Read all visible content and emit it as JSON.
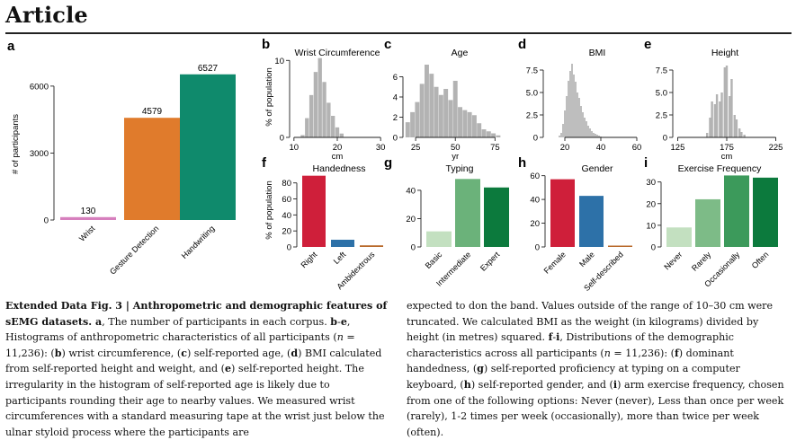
{
  "header": {
    "section": "Article"
  },
  "chart_data": [
    {
      "panel": "a",
      "type": "bar",
      "categories": [
        "Wrist",
        "Gesture Detection",
        "Handwriting"
      ],
      "values": [
        130,
        4579,
        6527
      ],
      "data_labels": [
        "130",
        "4579",
        "6527"
      ],
      "colors": [
        "#d67fbd",
        "#e07b2c",
        "#0f8a6c"
      ],
      "ylabel": "# of participants",
      "yticks": [
        0,
        3000,
        6000
      ],
      "ytick_labels": [
        "0",
        "3000",
        "6000"
      ],
      "ylim": [
        0,
        6800
      ]
    },
    {
      "panel": "b",
      "type": "bar",
      "title": "Wrist Circumference",
      "xlabel": "cm",
      "ylabel": "% of population",
      "xlim": [
        9,
        31
      ],
      "ylim": [
        0,
        10.5
      ],
      "xticks": [
        10,
        20,
        30
      ],
      "xtick_labels": [
        "10",
        "20",
        "30"
      ],
      "yticks": [
        0,
        10
      ],
      "ytick_labels": [
        "0",
        "10"
      ],
      "bar_width": 0.9,
      "color": "#b3b3b3",
      "x": [
        12,
        13,
        14,
        15,
        16,
        17,
        18,
        19,
        20,
        21
      ],
      "values": [
        0.3,
        2.5,
        5.5,
        8.5,
        10.3,
        7.2,
        4.5,
        2.8,
        1.3,
        0.5
      ]
    },
    {
      "panel": "c",
      "type": "bar",
      "title": "Age",
      "xlabel": "yr",
      "ylabel": "",
      "xlim": [
        17,
        85
      ],
      "ylim": [
        0,
        8
      ],
      "xticks": [
        25,
        50,
        75
      ],
      "xtick_labels": [
        "25",
        "50",
        "75"
      ],
      "yticks": [
        0,
        2,
        4,
        6
      ],
      "ytick_labels": [
        "0",
        "2",
        "4",
        "6"
      ],
      "bar_width": 2.8,
      "color": "#b3b3b3",
      "x": [
        20,
        23,
        26,
        29,
        32,
        35,
        38,
        41,
        44,
        47,
        50,
        53,
        56,
        59,
        62,
        65,
        68,
        71,
        74,
        77
      ],
      "values": [
        1.5,
        2.5,
        3.5,
        5.3,
        7.2,
        6.3,
        5.0,
        4.2,
        4.8,
        3.7,
        5.6,
        3.0,
        2.7,
        2.5,
        2.2,
        1.4,
        0.8,
        0.6,
        0.4,
        0.2
      ]
    },
    {
      "panel": "d",
      "type": "bar",
      "title": "BMI",
      "xlabel": "",
      "ylabel": "",
      "xlim": [
        8,
        62
      ],
      "ylim": [
        0,
        9
      ],
      "xticks": [
        20,
        40,
        60
      ],
      "xtick_labels": [
        "20",
        "40",
        "60"
      ],
      "yticks": [
        0,
        2.5,
        5.0,
        7.5
      ],
      "ytick_labels": [
        "0",
        "2.5",
        "5.0",
        "7.5"
      ],
      "bar_width": 0.85,
      "color": "#b3b3b3",
      "x": [
        17,
        18,
        19,
        20,
        21,
        22,
        23,
        24,
        25,
        26,
        27,
        28,
        29,
        30,
        31,
        32,
        33,
        34,
        35,
        36,
        37,
        38,
        39,
        40
      ],
      "values": [
        0.2,
        0.5,
        1.5,
        3.0,
        4.6,
        6.3,
        7.4,
        8.2,
        7.0,
        6.2,
        5.0,
        4.4,
        3.5,
        2.8,
        2.2,
        1.8,
        1.3,
        1.0,
        0.7,
        0.5,
        0.4,
        0.3,
        0.2,
        0.1
      ]
    },
    {
      "panel": "e",
      "type": "bar",
      "title": "Height",
      "xlabel": "cm",
      "ylabel": "",
      "xlim": [
        120,
        230
      ],
      "ylim": [
        0,
        9
      ],
      "xticks": [
        125,
        175,
        225
      ],
      "xtick_labels": [
        "125",
        "175",
        "225"
      ],
      "yticks": [
        0,
        2.5,
        5.0,
        7.5
      ],
      "ytick_labels": [
        "0",
        "2.5",
        "5.0",
        "7.5"
      ],
      "bar_width": 2.2,
      "color": "#b3b3b3",
      "x": [
        155,
        158,
        160,
        163,
        165,
        168,
        170,
        173,
        175,
        178,
        180,
        183,
        185,
        188,
        190,
        193
      ],
      "values": [
        0.5,
        2.2,
        4.0,
        3.7,
        4.8,
        4.0,
        5.0,
        7.8,
        8.0,
        4.6,
        6.5,
        2.5,
        2.0,
        1.0,
        0.6,
        0.3
      ]
    },
    {
      "panel": "f",
      "type": "bar",
      "title": "Handedness",
      "ylabel": "% of population",
      "categories": [
        "Right",
        "Left",
        "Ambidextrous"
      ],
      "values": [
        89,
        9,
        2
      ],
      "colors": [
        "#cf1f3a",
        "#2d71a8",
        "#b8692b"
      ],
      "ylim": [
        0,
        92
      ],
      "yticks": [
        0,
        20,
        40,
        60,
        80
      ],
      "ytick_labels": [
        "0",
        "20",
        "40",
        "60",
        "80"
      ]
    },
    {
      "panel": "g",
      "type": "bar",
      "title": "Typing",
      "categories": [
        "Basic",
        "Intermediate",
        "Expert"
      ],
      "values": [
        11,
        48,
        42
      ],
      "colors": [
        "#c3e0c0",
        "#6bb27a",
        "#0c7a3d"
      ],
      "ylim": [
        0,
        52
      ],
      "yticks": [
        0,
        20,
        40
      ],
      "ytick_labels": [
        "0",
        "20",
        "40"
      ]
    },
    {
      "panel": "h",
      "type": "bar",
      "title": "Gender",
      "categories": [
        "Female",
        "Male",
        "Self-described"
      ],
      "values": [
        57,
        43,
        1
      ],
      "colors": [
        "#cf1f3a",
        "#2d71a8",
        "#b8692b"
      ],
      "ylim": [
        0,
        62
      ],
      "yticks": [
        0,
        20,
        40,
        60
      ],
      "ytick_labels": [
        "0",
        "20",
        "40",
        "60"
      ]
    },
    {
      "panel": "i",
      "type": "bar",
      "title": "Exercise Frequency",
      "categories": [
        "Never",
        "Rarely",
        "Occasionally",
        "Often"
      ],
      "values": [
        9,
        22,
        33,
        32
      ],
      "colors": [
        "#c3e0c0",
        "#7dbb87",
        "#3c9a5b",
        "#0c7a3d"
      ],
      "ylim": [
        0,
        34
      ],
      "yticks": [
        0,
        10,
        20,
        30
      ],
      "ytick_labels": [
        "0",
        "10",
        "20",
        "30"
      ]
    }
  ],
  "caption": {
    "left": [
      {
        "t": "Extended Data Fig. 3 | Anthropometric and demographic features of sEMG datasets. ",
        "b": true
      },
      {
        "t": "a",
        "b": true
      },
      {
        "t": ", The number of participants in each corpus. "
      },
      {
        "t": "b",
        "b": true
      },
      {
        "t": "-"
      },
      {
        "t": "e",
        "b": true
      },
      {
        "t": ", Histograms of anthropometric characteristics of all participants ("
      },
      {
        "t": "n",
        "i": true
      },
      {
        "t": " = 11,236): ("
      },
      {
        "t": "b",
        "b": true
      },
      {
        "t": ") wrist circumference, ("
      },
      {
        "t": "c",
        "b": true
      },
      {
        "t": ") self-reported age, ("
      },
      {
        "t": "d",
        "b": true
      },
      {
        "t": ") BMI calculated from self-reported height and weight, and ("
      },
      {
        "t": "e",
        "b": true
      },
      {
        "t": ") self-reported height. The irregularity in the histogram of self-reported age is likely due to participants rounding their age to nearby values. We measured wrist circumferences with a standard measuring tape at the wrist just below the ulnar styloid process where the participants are"
      }
    ],
    "right": [
      {
        "t": "expected to don the band. Values outside of the range of 10–30 cm were truncated. We calculated BMI as the weight (in kilograms) divided by height (in metres) squared. "
      },
      {
        "t": "f",
        "b": true
      },
      {
        "t": "-"
      },
      {
        "t": "i",
        "b": true
      },
      {
        "t": ", Distributions of the demographic characteristics across all participants ("
      },
      {
        "t": "n",
        "i": true
      },
      {
        "t": " = 11,236): ("
      },
      {
        "t": "f",
        "b": true
      },
      {
        "t": ") dominant handedness, ("
      },
      {
        "t": "g",
        "b": true
      },
      {
        "t": ") self-reported proficiency at typing on a computer keyboard, ("
      },
      {
        "t": "h",
        "b": true
      },
      {
        "t": ") self-reported gender, and ("
      },
      {
        "t": "i",
        "b": true
      },
      {
        "t": ") arm exercise frequency, chosen from one of the following options: Never (never), Less than once per week (rarely), 1-2 times per week (occasionally), more than twice per week (often)."
      }
    ]
  }
}
